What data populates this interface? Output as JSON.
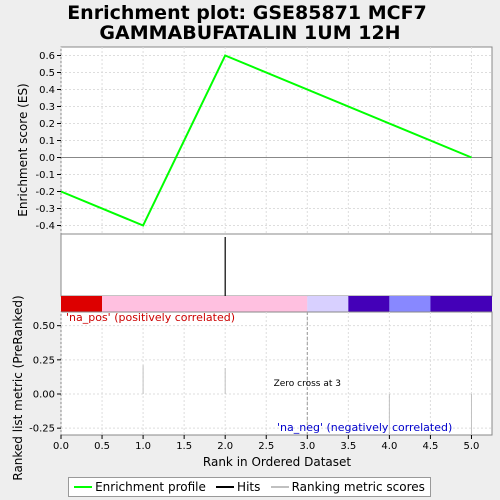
{
  "title_line1": "Enrichment plot: GSE85871 MCF7",
  "title_line2": "GAMMABUFATALIN 1UM 12H",
  "colors": {
    "profile": "#00ff00",
    "hits": "#000000",
    "metric": "#c0c0c0",
    "pos_label": "#cc0000",
    "neg_label": "#0000cc",
    "zero_cross": "#999999",
    "band": [
      "#dd0000",
      "#ffc0e0",
      "#d8d0ff",
      "#4400b8",
      "#8888ff",
      "#4400b8"
    ]
  },
  "chart_data": {
    "type": "line",
    "xlabel": "Rank in Ordered Dataset",
    "x_ticks": [
      "0.0",
      "0.5",
      "1.0",
      "1.5",
      "2.0",
      "2.5",
      "3.0",
      "3.5",
      "4.0",
      "4.5",
      "5.0"
    ],
    "xlim": [
      0,
      5.25
    ],
    "es": {
      "ylabel": "Enrichment score (ES)",
      "ylim": [
        -0.45,
        0.65
      ],
      "y_ticks": [
        "0.6",
        "0.5",
        "0.4",
        "0.3",
        "0.2",
        "0.1",
        "0.0",
        "-0.1",
        "-0.2",
        "-0.3",
        "-0.4"
      ],
      "x": [
        0,
        1,
        2,
        5
      ],
      "y": [
        -0.2,
        -0.4,
        0.6,
        0.0
      ]
    },
    "hits": [
      2
    ],
    "band_segments": [
      {
        "from": 0,
        "to": 0.5
      },
      {
        "from": 0.5,
        "to": 3.0
      },
      {
        "from": 3.0,
        "to": 3.5
      },
      {
        "from": 3.5,
        "to": 4.0
      },
      {
        "from": 4.0,
        "to": 4.5
      },
      {
        "from": 4.5,
        "to": 5.25
      }
    ],
    "metric": {
      "ylabel": "Ranked list metric (PreRanked)",
      "ylim": [
        -0.3,
        0.6
      ],
      "y_ticks": [
        "0.50",
        "0.25",
        "0.00",
        "-0.25"
      ],
      "bars_x": [
        1,
        2,
        4,
        5
      ],
      "bars_y": [
        0.21,
        0.19,
        -0.4,
        -0.4
      ]
    },
    "pos_label": "'na_pos' (positively correlated)",
    "neg_label": "'na_neg' (negatively correlated)",
    "zero_cross_x": 3,
    "zero_cross_label": "Zero cross at 3"
  },
  "legend": {
    "profile": "Enrichment profile",
    "hits": "Hits",
    "metric": "Ranking metric scores"
  }
}
